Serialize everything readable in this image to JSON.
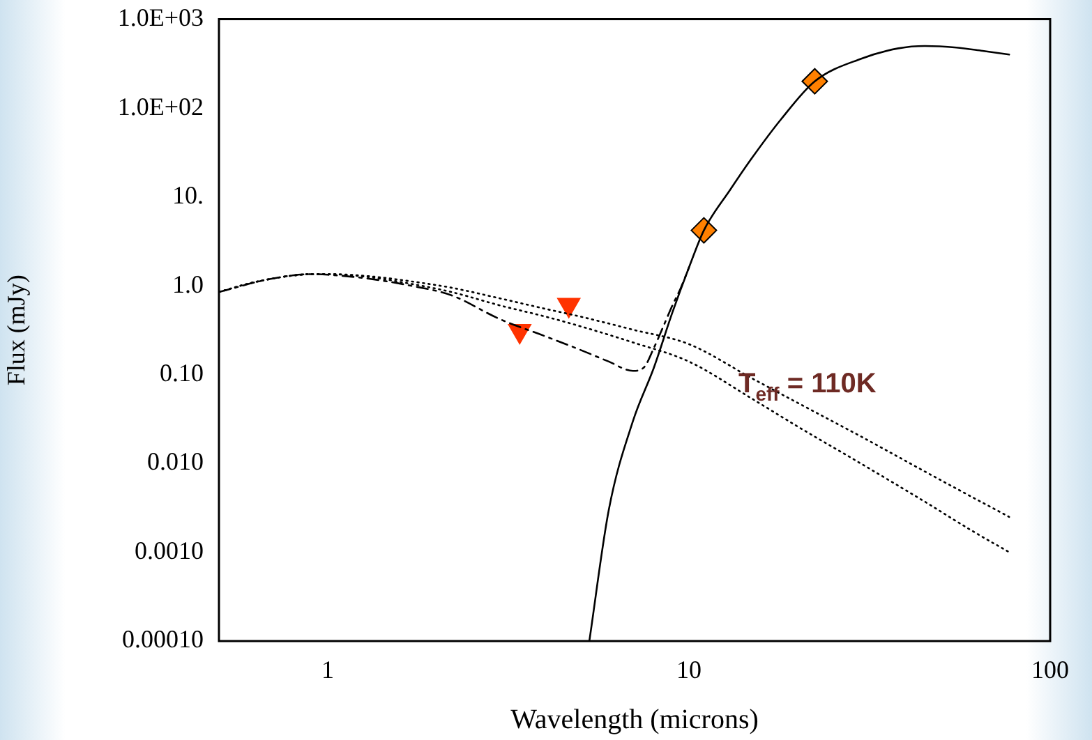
{
  "chart_data": {
    "type": "line",
    "xlabel": "Wavelength (microns)",
    "ylabel": "Flux (mJy)",
    "log": "xy",
    "grid": false,
    "legend": false,
    "xlim": [
      0.5,
      100
    ],
    "xticks": [
      1,
      10,
      100
    ],
    "ylim": [
      0.0001,
      1000
    ],
    "yticks": [
      {
        "value": 1000,
        "label": "1.0E+03"
      },
      {
        "value": 100,
        "label": "1.0E+02"
      },
      {
        "value": 10,
        "label": "10."
      },
      {
        "value": 1,
        "label": "1.0"
      },
      {
        "value": 0.1,
        "label": "0.10"
      },
      {
        "value": 0.01,
        "label": "0.010"
      },
      {
        "value": 0.001,
        "label": "0.0010"
      },
      {
        "value": 0.0001,
        "label": "0.00010"
      }
    ],
    "annotations": [
      "T$_{eff}$ = 110K"
    ],
    "series": [
      {
        "color": "#000000",
        "line_style": "solid",
        "marker": "none",
        "x": [
          5.3,
          6,
          7,
          8,
          9,
          10,
          11,
          13,
          15,
          18,
          22.3,
          30,
          38,
          45,
          55,
          65,
          77
        ],
        "values": [
          0.0001,
          0.003,
          0.03,
          0.12,
          0.5,
          1.6,
          4.2,
          12,
          28,
          75,
          200,
          360,
          470,
          500,
          480,
          440,
          400
        ]
      },
      {
        "color": "#000000",
        "line_style": "dotted",
        "marker": "none",
        "x": [
          0.5,
          0.6,
          0.7,
          0.8,
          0.9,
          1,
          1.3,
          1.7,
          2.2,
          3,
          4,
          5,
          7,
          10,
          15,
          20,
          30,
          45,
          60,
          77
        ],
        "values": [
          0.85,
          1.05,
          1.2,
          1.3,
          1.35,
          1.35,
          1.25,
          1.05,
          0.85,
          0.6,
          0.45,
          0.35,
          0.23,
          0.14,
          0.053,
          0.026,
          0.0099,
          0.0037,
          0.0018,
          0.001
        ]
      },
      {
        "color": "#000000",
        "line_style": "dotted",
        "marker": "none",
        "x": [
          0.5,
          0.6,
          0.7,
          0.8,
          0.9,
          1,
          1.3,
          1.7,
          2.2,
          3,
          4,
          5,
          7,
          10,
          15,
          20,
          30,
          45,
          60,
          77
        ],
        "values": [
          0.85,
          1.05,
          1.2,
          1.3,
          1.35,
          1.35,
          1.28,
          1.12,
          0.95,
          0.72,
          0.55,
          0.45,
          0.32,
          0.22,
          0.09,
          0.048,
          0.02,
          0.0081,
          0.0043,
          0.0025
        ]
      },
      {
        "color": "#000000",
        "line_style": "dashed",
        "marker": "none",
        "x": [
          0.5,
          0.7,
          0.9,
          1,
          1.3,
          1.7,
          2.2,
          3,
          4,
          5,
          6,
          7,
          7.5,
          8,
          8.5,
          9,
          9.5,
          10
        ],
        "values": [
          0.85,
          1.2,
          1.35,
          1.33,
          1.2,
          1.0,
          0.78,
          0.42,
          0.27,
          0.19,
          0.14,
          0.11,
          0.12,
          0.2,
          0.35,
          0.6,
          0.95,
          1.6
        ]
      },
      {
        "type": "scatter",
        "color": "#ff3300",
        "marker": "triangle",
        "x": [
          3.4,
          4.65
        ],
        "values": [
          0.31,
          0.61
        ]
      },
      {
        "type": "scatter",
        "color": "#ff8000",
        "marker": "diamond",
        "x": [
          11,
          22.3
        ],
        "values": [
          4.2,
          200
        ]
      }
    ]
  }
}
